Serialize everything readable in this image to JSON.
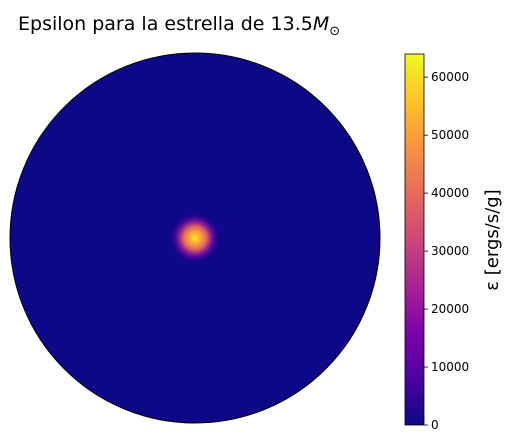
{
  "chart_data": {
    "type": "heatmap",
    "projection": "polar",
    "title": "Epsilon para la estrella de 13.5",
    "title_math": "M",
    "title_math_sub": "⊙",
    "colormap": "plasma",
    "colorbar": {
      "label": "ε [ergs/s/g]",
      "range": [
        0,
        64000
      ],
      "ticks": [
        0,
        10000,
        20000,
        30000,
        40000,
        50000,
        60000
      ],
      "tick_labels": [
        "0",
        "10000",
        "20000",
        "30000",
        "40000",
        "50000",
        "60000"
      ]
    },
    "field": {
      "description": "central peak",
      "center_value": 64000,
      "half_width_radius_fraction": 0.07,
      "background_value": 0
    },
    "grid": false,
    "axes_visible": false
  }
}
